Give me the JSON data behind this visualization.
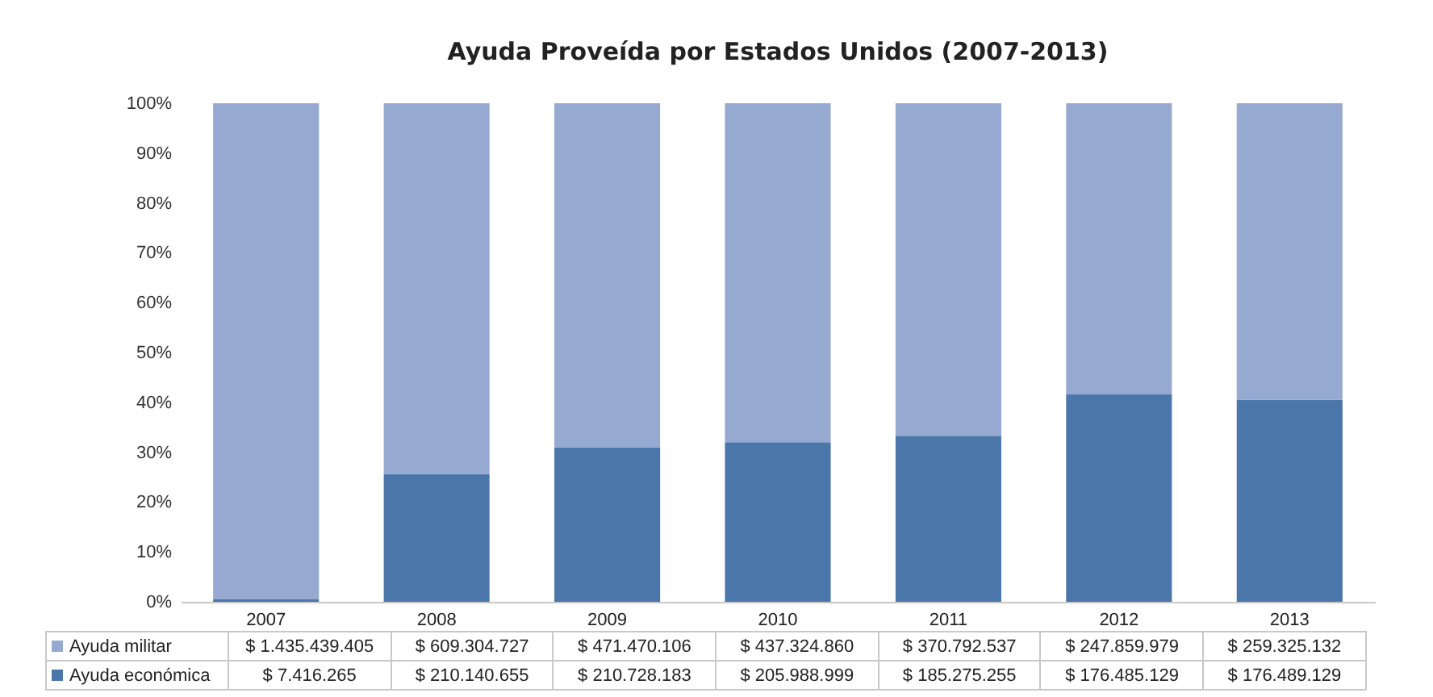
{
  "chart_data": {
    "type": "bar",
    "stacked": true,
    "title": "Ayuda Proveída por Estados Unidos (2007-2013)",
    "categories": [
      "2007",
      "2008",
      "2009",
      "2010",
      "2011",
      "2012",
      "2013"
    ],
    "series": [
      {
        "name": "Ayuda económica",
        "color": "#4a76aa",
        "values": [
          0.5,
          25.6,
          30.9,
          32.0,
          33.3,
          41.6,
          40.5
        ]
      },
      {
        "name": "Ayuda militar",
        "color": "#95a9d1",
        "values": [
          99.5,
          74.4,
          69.1,
          68.0,
          66.7,
          58.4,
          59.5
        ]
      }
    ],
    "annotations": [
      "$ 1.435.439.405",
      "$ 609.304.727",
      "$ 471.470.106",
      "$ 437.324.860",
      "$ 370.792.537",
      "$ 247.859.979",
      "$ 259.325.132",
      "$ 7.416.265",
      "$ 210.140.655",
      "$ 210.728.183",
      "$ 205.988.999",
      "$ 185.275.255",
      "$ 176.485.129",
      "$ 176.489.129"
    ],
    "ylim": [
      0,
      100
    ],
    "yticks": [
      {
        "value": 0,
        "label": "0%"
      },
      {
        "value": 10,
        "label": "10%"
      },
      {
        "value": 20,
        "label": "20%"
      },
      {
        "value": 30,
        "label": "30%"
      },
      {
        "value": 40,
        "label": "40%"
      },
      {
        "value": 50,
        "label": "50%"
      },
      {
        "value": 60,
        "label": "60%"
      },
      {
        "value": 70,
        "label": "70%"
      },
      {
        "value": 80,
        "label": "80%"
      },
      {
        "value": 90,
        "label": "90%"
      },
      {
        "value": 100,
        "label": "100%"
      }
    ],
    "grid": false,
    "legend": "bottom"
  }
}
